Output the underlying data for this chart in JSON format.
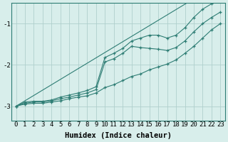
{
  "x": [
    0,
    1,
    2,
    3,
    4,
    5,
    6,
    7,
    8,
    9,
    10,
    11,
    12,
    13,
    14,
    15,
    16,
    17,
    18,
    19,
    20,
    21,
    22,
    23
  ],
  "y_lower": [
    -3.0,
    -2.95,
    -2.93,
    -2.93,
    -2.9,
    -2.87,
    -2.82,
    -2.78,
    -2.75,
    -2.68,
    -2.55,
    -2.48,
    -2.38,
    -2.28,
    -2.22,
    -2.12,
    -2.05,
    -1.98,
    -1.88,
    -1.72,
    -1.55,
    -1.35,
    -1.15,
    -1.0
  ],
  "y_mid": [
    -3.0,
    -2.93,
    -2.9,
    -2.9,
    -2.87,
    -2.82,
    -2.78,
    -2.73,
    -2.68,
    -2.6,
    -1.93,
    -1.85,
    -1.72,
    -1.55,
    -1.58,
    -1.6,
    -1.62,
    -1.65,
    -1.58,
    -1.42,
    -1.2,
    -1.0,
    -0.85,
    -0.72
  ],
  "y_upper": [
    -3.0,
    -2.9,
    -2.88,
    -2.88,
    -2.85,
    -2.78,
    -2.73,
    -2.68,
    -2.62,
    -2.53,
    -1.82,
    -1.72,
    -1.6,
    -1.42,
    -1.35,
    -1.28,
    -1.28,
    -1.35,
    -1.28,
    -1.1,
    -0.85,
    -0.65,
    -0.52,
    -0.42
  ],
  "y_straight_lo": [
    -3.0,
    -2.87,
    -2.74,
    -2.61,
    -2.48,
    -2.35,
    -2.22,
    -2.09,
    -1.96,
    -1.83,
    -1.7,
    -1.57,
    -1.44,
    -1.31,
    -1.18,
    -1.05,
    -0.92,
    -0.79,
    -0.66,
    -0.53,
    -0.4,
    -0.27,
    -0.14,
    -0.01
  ],
  "line_color": "#2e7d74",
  "bg_color": "#d8eeeb",
  "grid_color": "#b0cfcc",
  "xlabel": "Humidex (Indice chaleur)",
  "ylim": [
    -3.35,
    -0.5
  ],
  "xlim": [
    -0.5,
    23.5
  ],
  "yticks": [
    -3,
    -2,
    -1
  ],
  "xticks": [
    0,
    1,
    2,
    3,
    4,
    5,
    6,
    7,
    8,
    9,
    10,
    11,
    12,
    13,
    14,
    15,
    16,
    17,
    18,
    19,
    20,
    21,
    22,
    23
  ],
  "tick_fontsize": 6.5,
  "label_fontsize": 7.5
}
